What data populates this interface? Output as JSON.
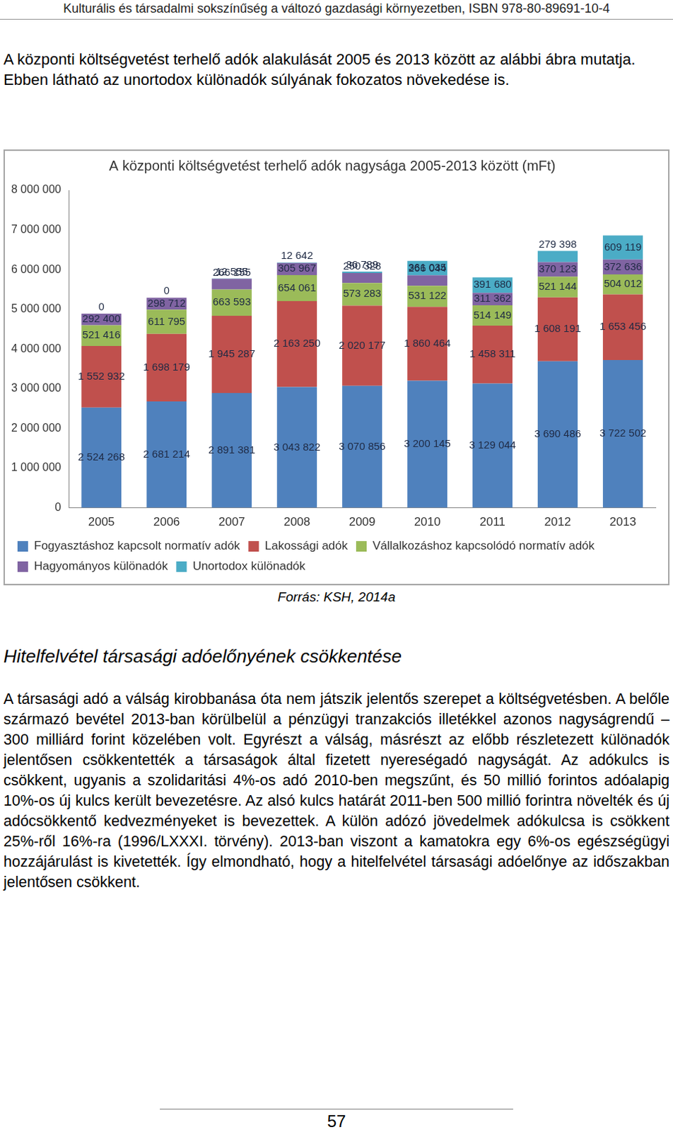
{
  "header": "Kulturális és társadalmi sokszínűség a változó gazdasági környezetben, ISBN 978-80-89691-10-4",
  "intro": "A központi költségvetést terhelő adók alakulását 2005 és 2013 között az alábbi ábra mutatja. Ebben látható az unortodox különadók súlyának fokozatos növekedése is.",
  "chart_data": {
    "type": "bar",
    "title": "A központi költségvetést terhelő adók nagysága 2005-2013 között (mFt)",
    "categories": [
      "2005",
      "2006",
      "2007",
      "2008",
      "2009",
      "2010",
      "2011",
      "2012",
      "2013"
    ],
    "series": [
      {
        "name": "Fogyasztáshoz kapcsolt normatív adók",
        "color": "#4f81bd",
        "values": [
          2524268,
          2681214,
          2891381,
          3043822,
          3070856,
          3200145,
          3129044,
          3690486,
          3722502
        ],
        "value_labels": [
          "2 524 268",
          "2 681 214",
          "2 891 381",
          "3 043 822",
          "3 070 856",
          "3 200 145",
          "3 129 044",
          "3 690 486",
          "3 722 502"
        ]
      },
      {
        "name": "Lakossági adók",
        "color": "#c0504d",
        "values": [
          1552932,
          1698179,
          1945287,
          2163250,
          2020177,
          1860464,
          1458311,
          1608191,
          1653456
        ],
        "value_labels": [
          "1 552 932",
          "1 698 179",
          "1 945 287",
          "2 163 250",
          "2 020 177",
          "1 860 464",
          "1 458 311",
          "1 608 191",
          "1 653 456"
        ]
      },
      {
        "name": "Vállalkozáshoz kapcsolódó normatív adók",
        "color": "#9bbb59",
        "values": [
          521416,
          611795,
          663593,
          654061,
          573283,
          531122,
          514149,
          521144,
          504012
        ],
        "value_labels": [
          "521 416",
          "611 795",
          "663 593",
          "654 061",
          "573 283",
          "531 122",
          "514 149",
          "521 144",
          "504 012"
        ]
      },
      {
        "name": "Hagyományos különadók",
        "color": "#8064a2",
        "values": [
          292400,
          298712,
          266155,
          305967,
          250328,
          266044,
          311362,
          370123,
          372636
        ],
        "value_labels": [
          "292 400",
          "298 712",
          "266 155",
          "305 967",
          "250 328",
          "266 044",
          "311 362",
          "370 123",
          "372 636"
        ]
      },
      {
        "name": "Unortodox különadók",
        "color": "#4bacc6",
        "values": [
          0,
          0,
          12555,
          12642,
          36789,
          361035,
          391680,
          279398,
          609119
        ],
        "value_labels": [
          "0",
          "0",
          "12 555",
          "12 642",
          "36 789",
          "361 035",
          "391 680",
          "279 398",
          "609 119"
        ]
      }
    ],
    "ylim": [
      0,
      8000000
    ],
    "yticks": [
      0,
      {
        "value": 1000000,
        "label": "1 000 000"
      },
      {
        "value": 2000000,
        "label": "2 000 000"
      },
      {
        "value": 3000000,
        "label": "3 000 000"
      },
      {
        "value": 4000000,
        "label": "4 000 000"
      },
      {
        "value": 5000000,
        "label": "5 000 000"
      },
      {
        "value": 6000000,
        "label": "6 000 000"
      },
      {
        "value": 7000000,
        "label": "7 000 000"
      },
      {
        "value": 8000000,
        "label": "8 000 000"
      }
    ],
    "stacked": true,
    "data_labels": true,
    "grid": false,
    "legend": "bottom"
  },
  "source": "Forrás: KSH, 2014a",
  "section_title": "Hitelfelvétel társasági adóelőnyének csökkentése",
  "body": "A társasági adó a válság kirobbanása óta nem játszik jelentős szerepet a költségvetésben. A belőle származó bevétel 2013-ban körülbelül a pénzügyi tranzakciós illetékkel azonos nagyságrendű – 300 milliárd forint közelében volt. Egyrészt a válság, másrészt az előbb részletezett különadók jelentősen csökkentették a társaságok által fizetett nyereségadó nagyságát. Az adókulcs is csökkent, ugyanis a szolidaritási 4%-os adó 2010-ben megszűnt, és 50 millió forintos adóalapig 10%-os új kulcs került bevezetésre. Az alsó kulcs határát 2011-ben 500 millió forintra növelték és új adócsökkentő kedvezményeket is bevezettek. A külön adózó jövedelmek adókulcsa is csökkent 25%-ről 16%-ra (1996/LXXXI. törvény). 2013-ban viszont a kamatokra egy 6%-os egészségügyi hozzájárulást is kivetették. Így elmondható, hogy a hitelfelvétel társasági adóelőnye az időszakban jelentősen csökkent.",
  "page_number": "57"
}
